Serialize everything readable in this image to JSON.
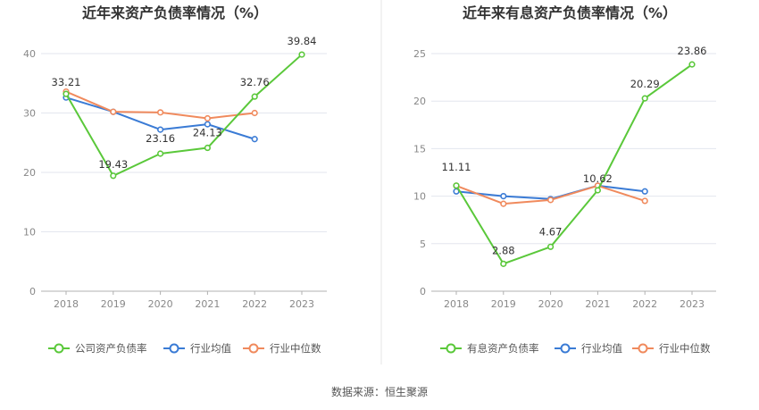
{
  "source_text": "数据来源：恒生聚源",
  "colors": {
    "company": "#5ac83a",
    "industry_avg": "#3a7bd5",
    "industry_median": "#f08a5d",
    "grid": "#e3e6ee",
    "axis": "#b0b0b0",
    "divider": "#e6e6e6"
  },
  "chart_data": [
    {
      "type": "line",
      "title": "近年来资产负债率情况（%）",
      "categories": [
        "2018",
        "2019",
        "2020",
        "2021",
        "2022",
        "2023"
      ],
      "ylim": [
        0,
        40
      ],
      "yticks": [
        "0",
        "10",
        "20",
        "30",
        "40"
      ],
      "grid": true,
      "legend_position": "bottom",
      "series": [
        {
          "name": "公司资产负债率",
          "color_key": "company",
          "values": [
            33.21,
            19.43,
            23.16,
            24.13,
            32.76,
            39.84
          ],
          "labels": [
            "33.21",
            "19.43",
            "23.16",
            "24.13",
            "32.76",
            "39.84"
          ]
        },
        {
          "name": "行业均值",
          "color_key": "industry_avg",
          "values": [
            32.6,
            30.2,
            27.2,
            28.1,
            25.6,
            null
          ]
        },
        {
          "name": "行业中位数",
          "color_key": "industry_median",
          "values": [
            33.6,
            30.2,
            30.1,
            29.1,
            30.0,
            null
          ]
        }
      ]
    },
    {
      "type": "line",
      "title": "近年来有息资产负债率情况（%）",
      "categories": [
        "2018",
        "2019",
        "2020",
        "2021",
        "2022",
        "2023"
      ],
      "ylim": [
        0,
        25
      ],
      "yticks": [
        "0",
        "5",
        "10",
        "15",
        "20",
        "25"
      ],
      "grid": true,
      "legend_position": "bottom",
      "series": [
        {
          "name": "有息资产负债率",
          "color_key": "company",
          "values": [
            11.11,
            2.88,
            4.67,
            10.62,
            20.29,
            23.86
          ],
          "labels": [
            "11.11",
            "2.88",
            "4.67",
            "10.62",
            "20.29",
            "23.86"
          ]
        },
        {
          "name": "行业均值",
          "color_key": "industry_avg",
          "values": [
            10.5,
            10.0,
            9.7,
            11.1,
            10.5,
            null
          ]
        },
        {
          "name": "行业中位数",
          "color_key": "industry_median",
          "values": [
            11.1,
            9.2,
            9.6,
            11.1,
            9.5,
            null
          ]
        }
      ]
    }
  ]
}
